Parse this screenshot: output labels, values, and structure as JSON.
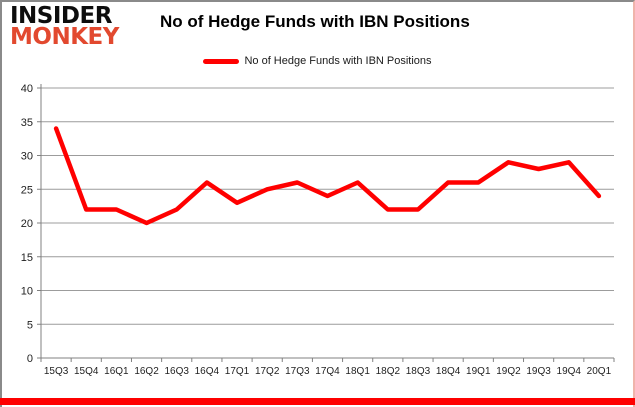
{
  "branding": {
    "logo_line1": "INSIDER",
    "logo_line2": "MONKEY",
    "logo_color": "#e2492f"
  },
  "header": {
    "title": "No of Hedge Funds with IBN Positions"
  },
  "legend": {
    "label": "No of Hedge Funds with IBN Positions",
    "swatch_color": "#ff0000"
  },
  "chart_data": {
    "type": "line",
    "title": "No of Hedge Funds with IBN Positions",
    "series_name": "No of Hedge Funds with IBN Positions",
    "categories": [
      "15Q3",
      "15Q4",
      "16Q1",
      "16Q2",
      "16Q3",
      "16Q4",
      "17Q1",
      "17Q2",
      "17Q3",
      "17Q4",
      "18Q1",
      "18Q2",
      "18Q3",
      "18Q4",
      "19Q1",
      "19Q2",
      "19Q3",
      "19Q4",
      "20Q1"
    ],
    "values": [
      34,
      22,
      22,
      20,
      22,
      26,
      23,
      25,
      26,
      24,
      26,
      22,
      22,
      26,
      26,
      29,
      28,
      29,
      24
    ],
    "xlabel": "",
    "ylabel": "",
    "ylim": [
      0,
      40
    ],
    "yticks": [
      0,
      5,
      10,
      15,
      20,
      25,
      30,
      35,
      40
    ],
    "grid": true,
    "legend_position": "top",
    "line_color": "#ff0000"
  },
  "colors": {
    "accent_red": "#ff0000",
    "bottom_bar": "#fe0000",
    "gridline": "#9c9c9c",
    "axis": "#808080",
    "label_text": "#1f1f1f",
    "border_gray": "#8a8a8a",
    "border_pink": "#f0b4ab"
  }
}
